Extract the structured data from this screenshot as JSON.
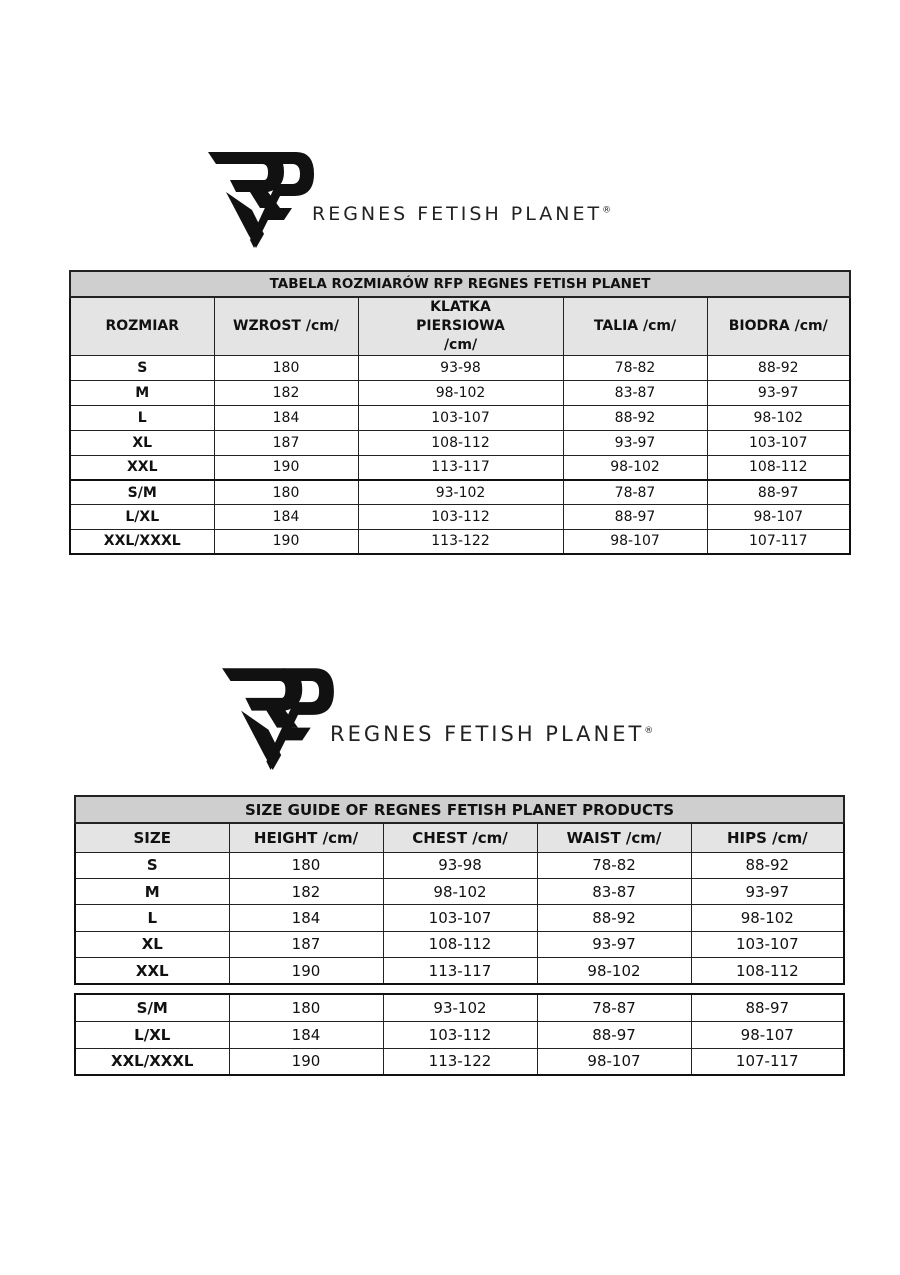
{
  "brand": {
    "name": "REGNES FETISH PLANET",
    "registered": "®",
    "logo_monogram": "RFP"
  },
  "table_pl": {
    "title": "TABELA ROZMIARÓW RFP REGNES FETISH PLANET",
    "headers": [
      "ROZMIAR",
      "WZROST /cm/",
      "KLATKA PIERSIOWA /cm/",
      "TALIA /cm/",
      "BIODRA /cm/"
    ],
    "rows": [
      [
        "S",
        "180",
        "93-98",
        "78-82",
        "88-92"
      ],
      [
        "M",
        "182",
        "98-102",
        "83-87",
        "93-97"
      ],
      [
        "L",
        "184",
        "103-107",
        "88-92",
        "98-102"
      ],
      [
        "XL",
        "187",
        "108-112",
        "93-97",
        "103-107"
      ],
      [
        "XXL",
        "190",
        "113-117",
        "98-102",
        "108-112"
      ]
    ],
    "rows2": [
      [
        "S/M",
        "180",
        "93-102",
        "78-87",
        "88-97"
      ],
      [
        "L/XL",
        "184",
        "103-112",
        "88-97",
        "98-107"
      ],
      [
        "XXL/XXXL",
        "190",
        "113-122",
        "98-107",
        "107-117"
      ]
    ]
  },
  "table_en": {
    "title": "SIZE GUIDE OF REGNES FETISH PLANET PRODUCTS",
    "headers": [
      "SIZE",
      "HEIGHT /cm/",
      "CHEST /cm/",
      "WAIST /cm/",
      "HIPS /cm/"
    ],
    "rows": [
      [
        "S",
        "180",
        "93-98",
        "78-82",
        "88-92"
      ],
      [
        "M",
        "182",
        "98-102",
        "83-87",
        "93-97"
      ],
      [
        "L",
        "184",
        "103-107",
        "88-92",
        "98-102"
      ],
      [
        "XL",
        "187",
        "108-112",
        "93-97",
        "103-107"
      ],
      [
        "XXL",
        "190",
        "113-117",
        "98-102",
        "108-112"
      ]
    ],
    "rows2": [
      [
        "S/M",
        "180",
        "93-102",
        "78-87",
        "88-97"
      ],
      [
        "L/XL",
        "184",
        "103-112",
        "88-97",
        "98-107"
      ],
      [
        "XXL/XXXL",
        "190",
        "113-122",
        "98-107",
        "107-117"
      ]
    ]
  }
}
